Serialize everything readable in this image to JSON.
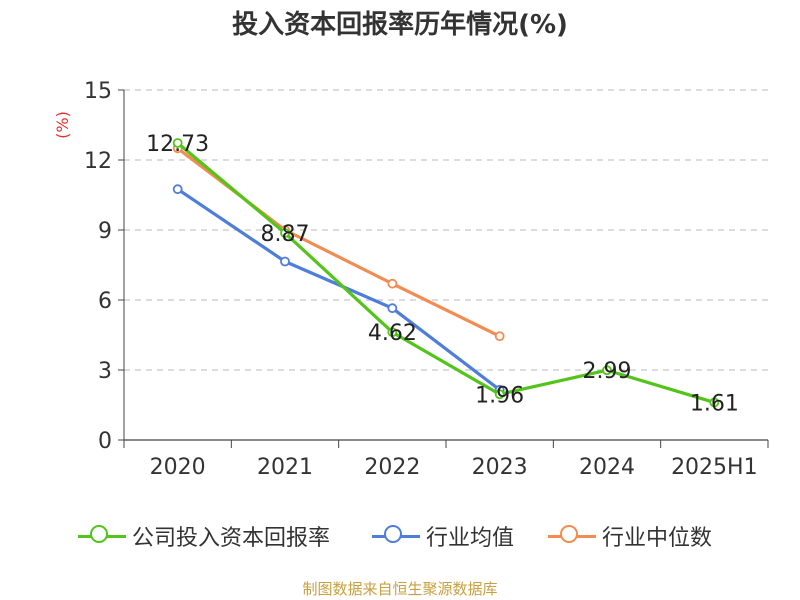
{
  "title": "投入资本回报率历年情况(%)",
  "source": "制图数据来自恒生聚源数据库",
  "chart_data": {
    "type": "line",
    "title": "投入资本回报率历年情况(%)",
    "ylabel": "(%)",
    "ylim": [
      0,
      15
    ],
    "yticks": [
      "0",
      "3",
      "6",
      "9",
      "12",
      "15"
    ],
    "categories": [
      "2020",
      "2021",
      "2022",
      "2023",
      "2024",
      "2025H1"
    ],
    "grid": true,
    "legend_position": "bottom",
    "series": [
      {
        "name": "公司投入资本回报率",
        "color": "#52c41a",
        "values": [
          12.73,
          8.87,
          4.62,
          1.96,
          2.99,
          1.61
        ],
        "labels": [
          "12.73",
          "8.87",
          "4.62",
          "1.96",
          "2.99",
          "1.61"
        ]
      },
      {
        "name": "行业均值",
        "color": "#4f7ddb",
        "values": [
          10.75,
          7.65,
          5.65,
          2.15,
          null,
          null
        ]
      },
      {
        "name": "行业中位数",
        "color": "#f28c50",
        "values": [
          12.5,
          9.0,
          6.7,
          4.45,
          null,
          null
        ]
      }
    ]
  }
}
